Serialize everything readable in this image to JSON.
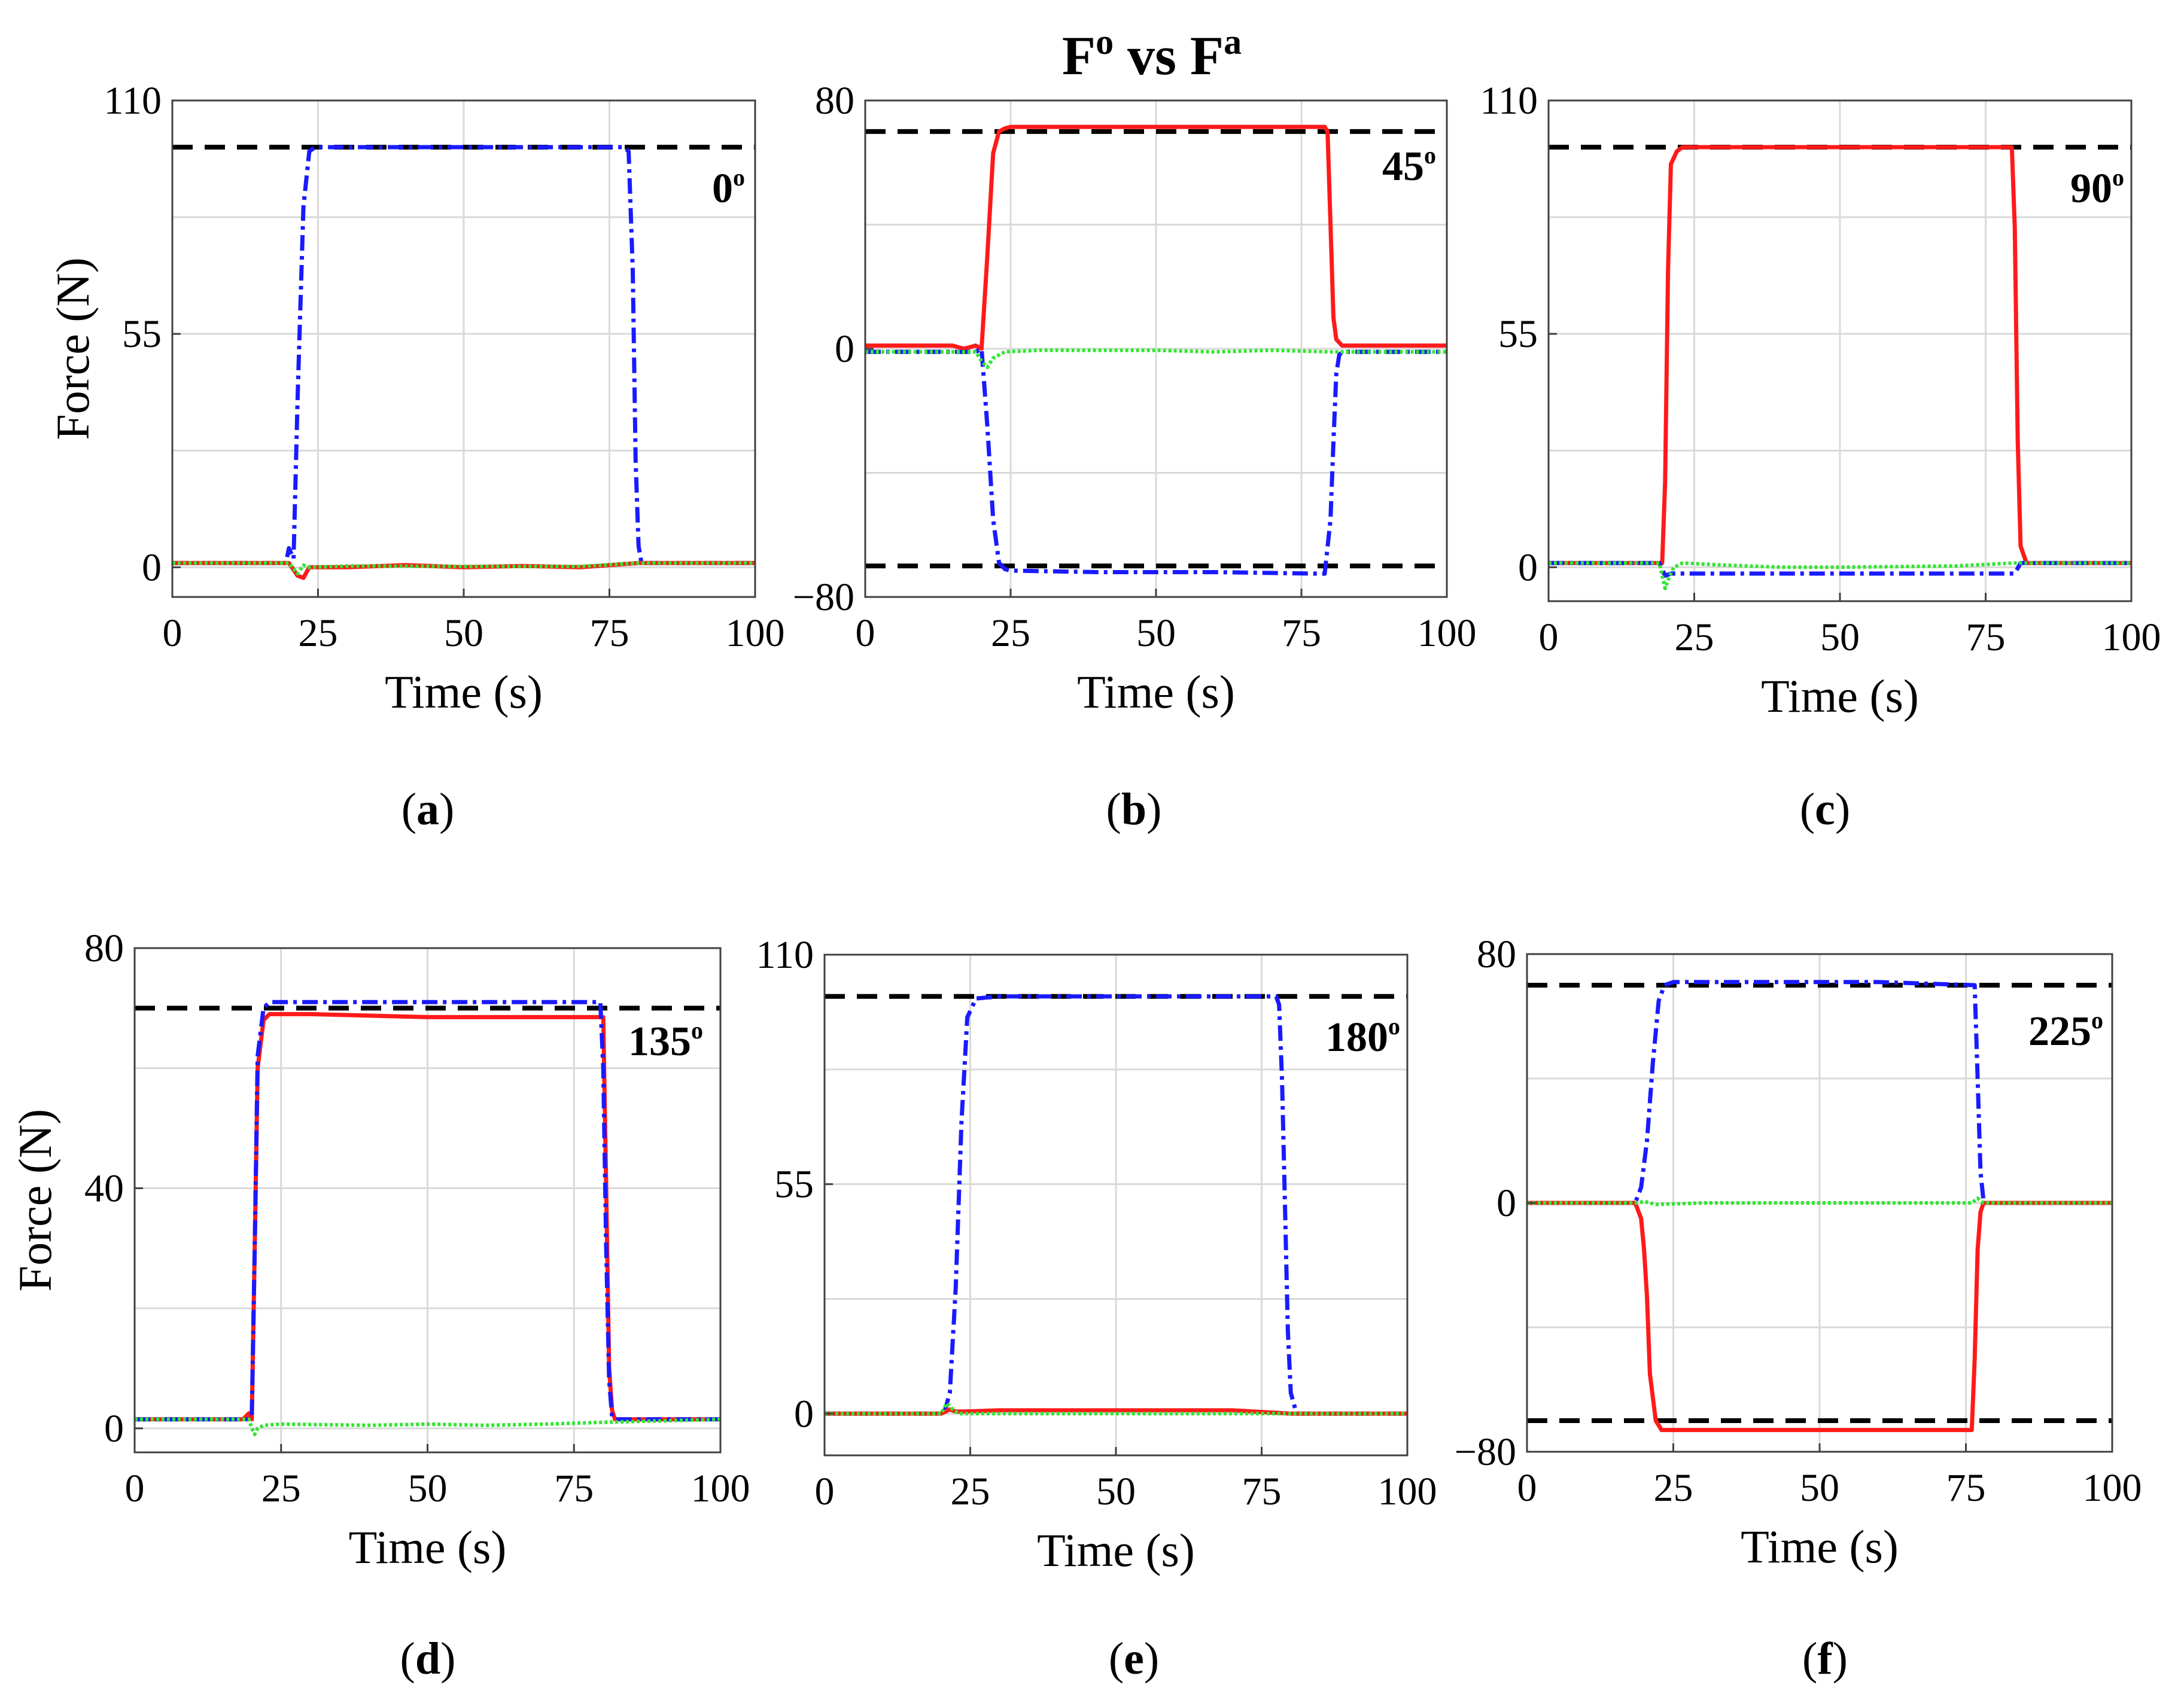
{
  "figure": {
    "title": {
      "main": "F",
      "sup1": "o",
      "mid": " vs F",
      "sup2": "a"
    }
  },
  "colors": {
    "axis": "#404040",
    "grid": "#d9d9d9",
    "reference": "#000000",
    "red": "#ff1a1a",
    "blue": "#1a1aff",
    "green": "#33e633"
  },
  "chart_data": [
    {
      "type": "line",
      "panel": "a",
      "panel_label": "a",
      "angle": "0",
      "angle_sup": "o",
      "xlabel": "Time (s)",
      "ylabel": "Force (N)",
      "xlim": [
        0,
        100
      ],
      "ylim": [
        -7,
        110
      ],
      "xticks": [
        0,
        25,
        50,
        75,
        100
      ],
      "xtick_labels": [
        "0",
        "25",
        "50",
        "75",
        "100"
      ],
      "yticks": [
        0,
        55,
        110
      ],
      "ytick_labels": [
        "0",
        "55",
        "110"
      ],
      "grid": true,
      "reference_lines": [
        99
      ],
      "series": [
        {
          "name": "blue",
          "style": "dashdot",
          "x": [
            0,
            19.5,
            20,
            20.8,
            21.5,
            22.5,
            23.5,
            24.5,
            30,
            50,
            70,
            77.5,
            78.3,
            79,
            79.5,
            80,
            80.5,
            100
          ],
          "y": [
            1,
            1,
            4.5,
            2,
            40,
            85,
            98,
            99,
            99,
            99,
            99,
            99,
            98,
            70,
            25,
            5,
            1,
            1
          ]
        },
        {
          "name": "red",
          "style": "solid",
          "x": [
            0,
            20,
            21.5,
            22.5,
            23.5,
            25,
            30,
            40,
            50,
            60,
            70,
            80,
            100
          ],
          "y": [
            1,
            1,
            -2,
            -2.5,
            0,
            0,
            0,
            0.5,
            0,
            0.3,
            0,
            1,
            1
          ]
        },
        {
          "name": "green",
          "style": "dotted",
          "x": [
            0,
            20,
            21.5,
            22.5,
            23.5,
            30,
            50,
            70,
            80,
            100
          ],
          "y": [
            1,
            1,
            -1.5,
            0.5,
            0,
            0.3,
            0.2,
            0.2,
            1,
            1
          ]
        }
      ]
    },
    {
      "type": "line",
      "panel": "b",
      "panel_label": "b",
      "angle": "45",
      "angle_sup": "o",
      "xlabel": "Time (s)",
      "ylabel": "",
      "xlim": [
        0,
        100
      ],
      "ylim": [
        -80,
        80
      ],
      "xticks": [
        0,
        25,
        50,
        75,
        100
      ],
      "xtick_labels": [
        "0",
        "25",
        "50",
        "75",
        "100"
      ],
      "yticks": [
        -80,
        0,
        80
      ],
      "ytick_labels": [
        "−80",
        "0",
        "80"
      ],
      "grid": true,
      "reference_lines": [
        70,
        -70
      ],
      "series": [
        {
          "name": "red",
          "style": "solid",
          "x": [
            0,
            15,
            17,
            19,
            20,
            21,
            22,
            23,
            24,
            25,
            40,
            60,
            79,
            79.5,
            80,
            80.5,
            81,
            82,
            100
          ],
          "y": [
            1,
            1,
            0,
            1,
            0,
            30,
            63,
            70,
            71,
            71.5,
            71.5,
            71.5,
            71.5,
            70,
            40,
            10,
            3,
            1,
            1
          ]
        },
        {
          "name": "blue",
          "style": "dashdot",
          "x": [
            0,
            19,
            20,
            21,
            22,
            23,
            24,
            25,
            40,
            60,
            79,
            80,
            80.5,
            81,
            81.5,
            82,
            100
          ],
          "y": [
            -1,
            -1,
            0,
            -25,
            -55,
            -69,
            -71,
            -71.5,
            -72,
            -72,
            -72.5,
            -55,
            -30,
            -8,
            -2,
            -1,
            -1
          ]
        },
        {
          "name": "green",
          "style": "dotted",
          "x": [
            0,
            19,
            20,
            21,
            22,
            24,
            30,
            50,
            60,
            70,
            80,
            100
          ],
          "y": [
            -1,
            -1,
            -4,
            -6,
            -3,
            -1,
            -0.5,
            -0.5,
            -1,
            -0.5,
            -1,
            -1
          ]
        }
      ]
    },
    {
      "type": "line",
      "panel": "c",
      "panel_label": "c",
      "angle": "90",
      "angle_sup": "o",
      "xlabel": "Time (s)",
      "ylabel": "",
      "xlim": [
        0,
        100
      ],
      "ylim": [
        -8,
        110
      ],
      "xticks": [
        0,
        25,
        50,
        75,
        100
      ],
      "xtick_labels": [
        "0",
        "25",
        "50",
        "75",
        "100"
      ],
      "yticks": [
        0,
        55,
        110
      ],
      "ytick_labels": [
        "0",
        "55",
        "110"
      ],
      "grid": true,
      "reference_lines": [
        99
      ],
      "series": [
        {
          "name": "red",
          "style": "solid",
          "x": [
            0,
            19.5,
            20,
            20.5,
            21,
            22,
            23,
            30,
            60,
            79.5,
            80,
            80.5,
            81,
            82,
            100
          ],
          "y": [
            1,
            1,
            20,
            70,
            95,
            98,
            99,
            99,
            99,
            99,
            80,
            30,
            5,
            1,
            1
          ]
        },
        {
          "name": "blue",
          "style": "dashdot",
          "x": [
            0,
            19,
            20,
            21,
            22,
            30,
            50,
            70,
            80,
            81,
            100
          ],
          "y": [
            1,
            1,
            -2,
            -1.5,
            -1.5,
            -1.5,
            -1.5,
            -1.5,
            -1.5,
            1,
            1
          ]
        },
        {
          "name": "green",
          "style": "dotted",
          "x": [
            0,
            19,
            20,
            20.8,
            21.5,
            23,
            30,
            40,
            50,
            70,
            80,
            100
          ],
          "y": [
            1,
            1,
            -5,
            -2,
            0,
            1,
            0.5,
            0,
            0,
            0.3,
            1,
            1
          ]
        }
      ]
    },
    {
      "type": "line",
      "panel": "d",
      "panel_label": "d",
      "angle": "135",
      "angle_sup": "o",
      "xlabel": "Time (s)",
      "ylabel": "Force (N)",
      "xlim": [
        0,
        100
      ],
      "ylim": [
        -4,
        80
      ],
      "xticks": [
        0,
        25,
        50,
        75,
        100
      ],
      "xtick_labels": [
        "0",
        "25",
        "50",
        "75",
        "100"
      ],
      "yticks": [
        0,
        40,
        80
      ],
      "ytick_labels": [
        "0",
        "40",
        "80"
      ],
      "grid": true,
      "reference_lines": [
        70
      ],
      "series": [
        {
          "name": "red",
          "style": "solid",
          "x": [
            0,
            18.5,
            19.5,
            20,
            20.5,
            21,
            22,
            23,
            30,
            50,
            65,
            80,
            80.5,
            81,
            81.5,
            82,
            100
          ],
          "y": [
            1.5,
            1.5,
            2.5,
            1.5,
            30,
            60,
            68,
            69,
            69,
            68.5,
            68.5,
            68.5,
            40,
            10,
            3,
            1.5,
            1.5
          ]
        },
        {
          "name": "blue",
          "style": "dashdot",
          "x": [
            0,
            19.5,
            20,
            20.5,
            21,
            22,
            23,
            30,
            50,
            79.5,
            80,
            80.5,
            81,
            81.5,
            82,
            100
          ],
          "y": [
            1.5,
            1.5,
            2,
            30,
            62,
            70,
            71,
            71,
            71,
            71,
            60,
            30,
            8,
            2,
            1.5,
            1.5
          ]
        },
        {
          "name": "green",
          "style": "dotted",
          "x": [
            0,
            19.5,
            20,
            20.5,
            21,
            22,
            25,
            40,
            50,
            60,
            70,
            80,
            100
          ],
          "y": [
            1.5,
            1.5,
            0,
            -1,
            0,
            0.5,
            0.7,
            0.5,
            0.7,
            0.5,
            0.7,
            1,
            1.5
          ]
        }
      ]
    },
    {
      "type": "line",
      "panel": "e",
      "panel_label": "e",
      "angle": "180",
      "angle_sup": "o",
      "xlabel": "Time (s)",
      "ylabel": "",
      "xlim": [
        0,
        100
      ],
      "ylim": [
        -10,
        110
      ],
      "xticks": [
        0,
        25,
        50,
        75,
        100
      ],
      "xtick_labels": [
        "0",
        "25",
        "50",
        "75",
        "100"
      ],
      "yticks": [
        0,
        55,
        110
      ],
      "ytick_labels": [
        "0",
        "55",
        "110"
      ],
      "grid": true,
      "reference_lines": [
        100
      ],
      "series": [
        {
          "name": "blue",
          "style": "dashdot",
          "x": [
            0,
            20.5,
            21.5,
            22.5,
            23.5,
            24.5,
            26,
            30,
            50,
            77.5,
            78,
            78.5,
            79,
            79.5,
            80,
            81,
            100
          ],
          "y": [
            0,
            0,
            5,
            30,
            70,
            95,
            99.5,
            100,
            100,
            100,
            98,
            80,
            50,
            20,
            5,
            0,
            0
          ]
        },
        {
          "name": "red",
          "style": "solid",
          "x": [
            0,
            20,
            21.5,
            22.5,
            24,
            30,
            50,
            70,
            80,
            100
          ],
          "y": [
            0,
            0,
            1,
            0.5,
            0.5,
            0.8,
            0.8,
            0.8,
            0,
            0
          ]
        },
        {
          "name": "green",
          "style": "dotted",
          "x": [
            0,
            20,
            21,
            22,
            23,
            30,
            50,
            80,
            100
          ],
          "y": [
            0,
            0,
            2.5,
            1,
            0,
            0,
            0,
            0,
            0
          ]
        }
      ]
    },
    {
      "type": "line",
      "panel": "f",
      "panel_label": "f",
      "angle": "225",
      "angle_sup": "o",
      "xlabel": "Time (s)",
      "ylabel": "",
      "xlim": [
        0,
        100
      ],
      "ylim": [
        -80,
        80
      ],
      "xticks": [
        0,
        25,
        50,
        75,
        100
      ],
      "xtick_labels": [
        "0",
        "25",
        "50",
        "75",
        "100"
      ],
      "yticks": [
        -80,
        0,
        80
      ],
      "ytick_labels": [
        "−80",
        "0",
        "80"
      ],
      "grid": true,
      "reference_lines": [
        70,
        -70
      ],
      "series": [
        {
          "name": "blue",
          "style": "dashdot",
          "x": [
            0,
            18.5,
            19.5,
            20.5,
            21.5,
            22.5,
            23.5,
            25,
            40,
            60,
            76.5,
            77,
            77.5,
            78,
            78.5,
            100
          ],
          "y": [
            0,
            0,
            5,
            20,
            45,
            65,
            70,
            71,
            71,
            71,
            70,
            40,
            10,
            1,
            0,
            0
          ]
        },
        {
          "name": "red",
          "style": "solid",
          "x": [
            0,
            18.5,
            19.5,
            20,
            20.5,
            21,
            22,
            23,
            25,
            40,
            60,
            76,
            76.5,
            77,
            77.5,
            78,
            100
          ],
          "y": [
            0,
            0,
            -5,
            -15,
            -30,
            -55,
            -70,
            -73,
            -73,
            -73,
            -73,
            -73,
            -50,
            -15,
            -3,
            0,
            0
          ]
        },
        {
          "name": "green",
          "style": "dotted",
          "x": [
            0,
            19,
            20,
            22,
            30,
            50,
            70,
            76,
            77,
            78,
            100
          ],
          "y": [
            0,
            0,
            0.5,
            -0.5,
            0,
            0,
            0,
            0,
            1.5,
            0,
            0
          ]
        }
      ]
    }
  ]
}
